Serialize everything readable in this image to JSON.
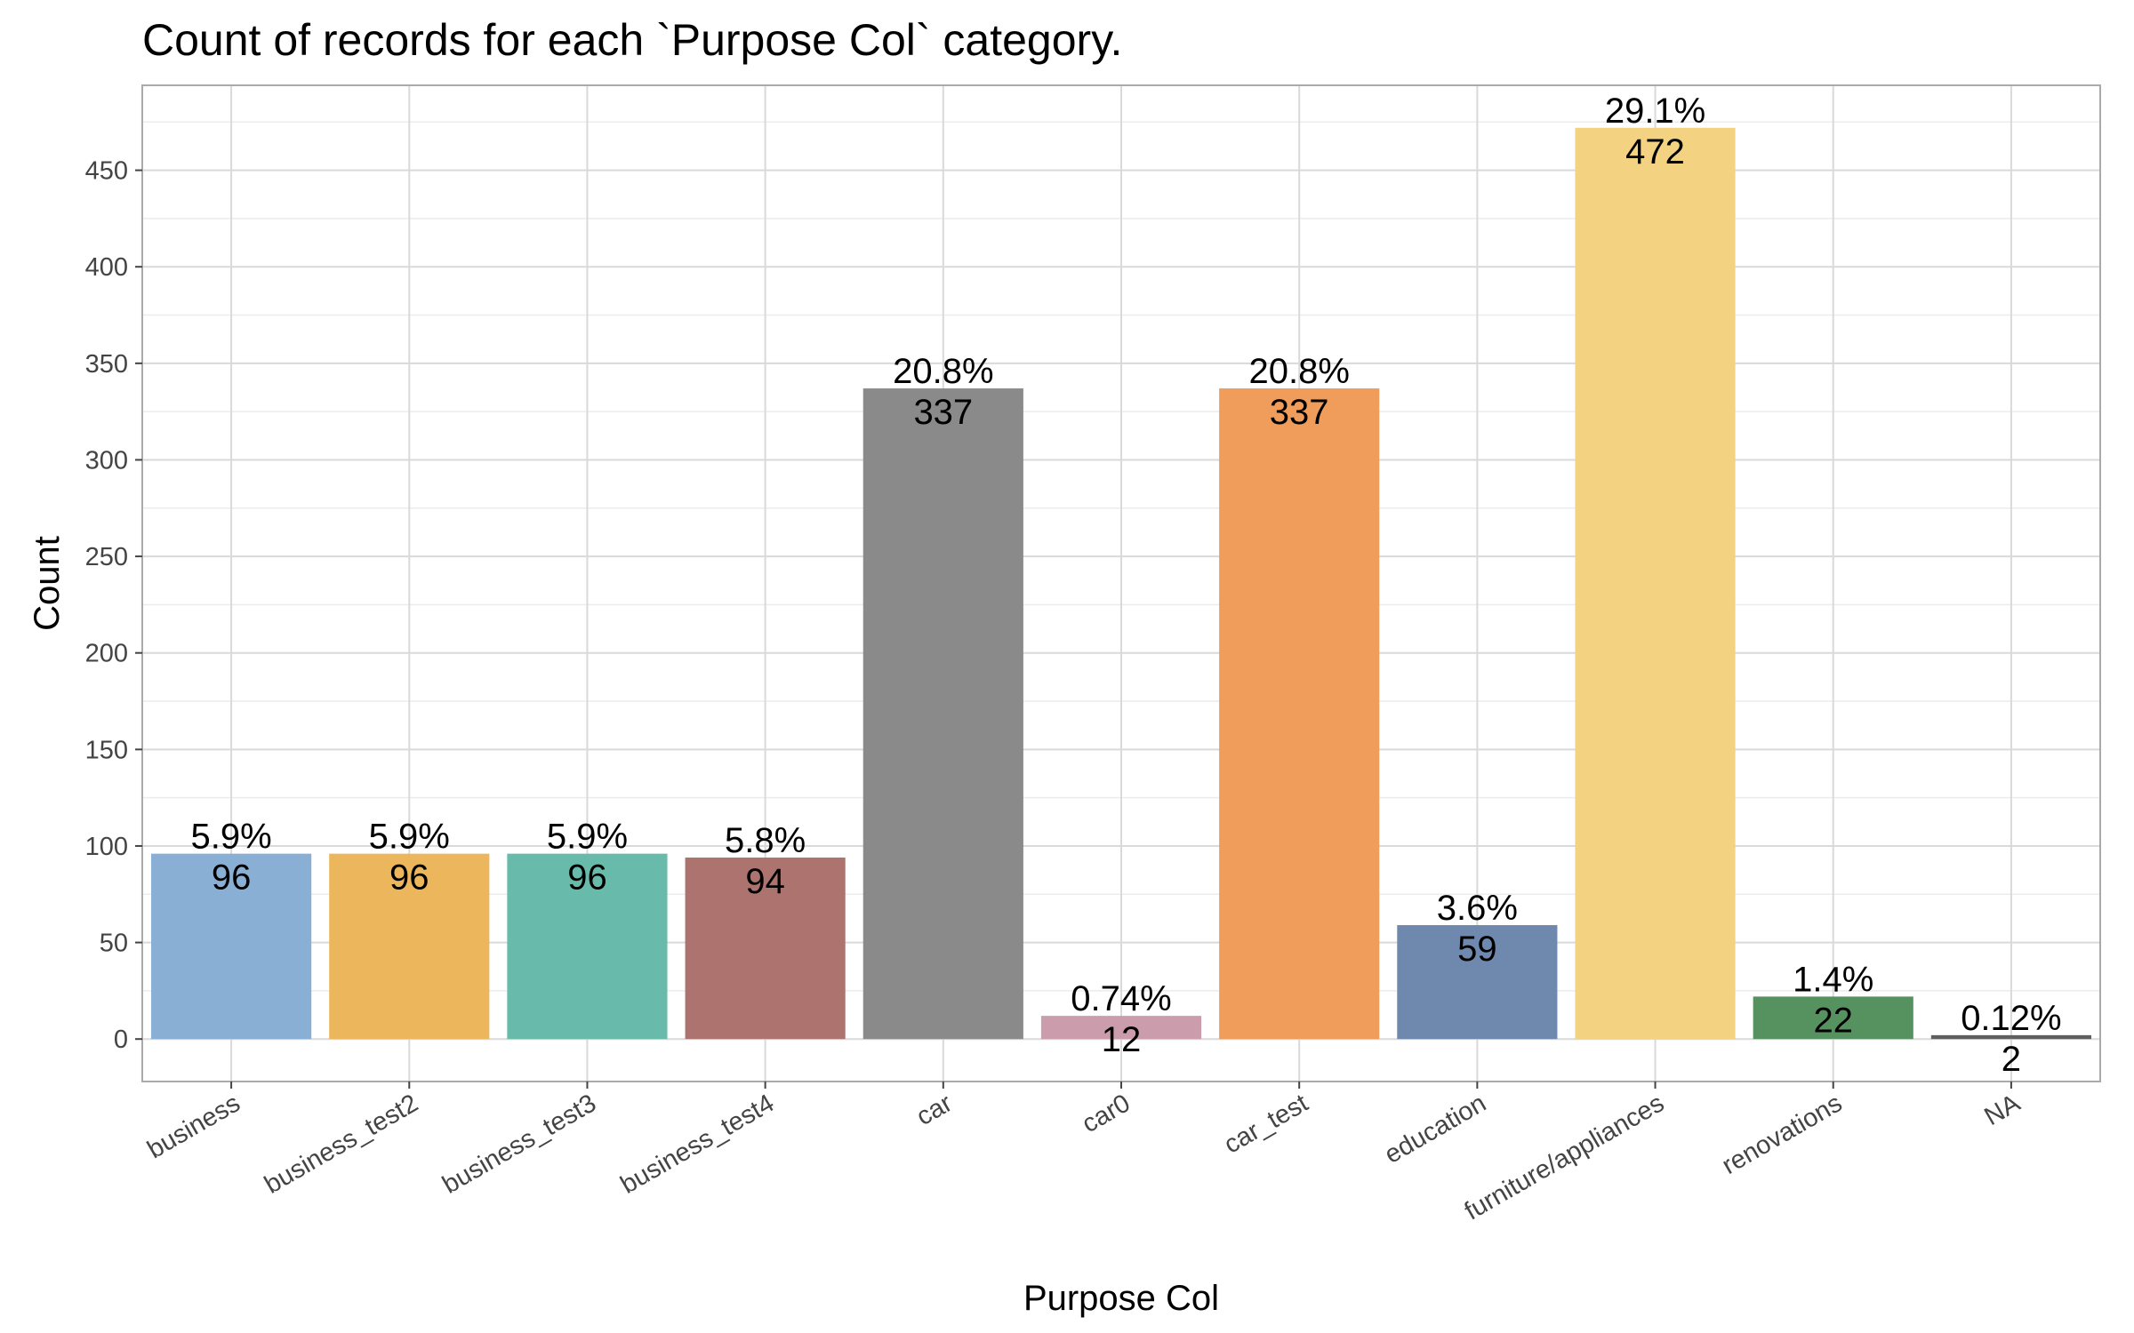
{
  "chart_data": {
    "type": "bar",
    "title": "Count of records for each `Purpose Col` category.",
    "xlabel": "Purpose Col",
    "ylabel": "Count",
    "categories": [
      "business",
      "business_test2",
      "business_test3",
      "business_test4",
      "car",
      "car0",
      "car_test",
      "education",
      "furniture/appliances",
      "renovations",
      "NA"
    ],
    "values": [
      96,
      96,
      96,
      94,
      337,
      12,
      337,
      59,
      472,
      22,
      2
    ],
    "percent_labels": [
      "5.9%",
      "5.9%",
      "5.9%",
      "5.8%",
      "20.8%",
      "0.74%",
      "20.8%",
      "3.6%",
      "29.1%",
      "1.4%",
      "0.12%"
    ],
    "count_labels": [
      "96",
      "96",
      "96",
      "94",
      "337",
      "12",
      "337",
      "59",
      "472",
      "22",
      "2"
    ],
    "colors": [
      "#8aafd4",
      "#ebb65c",
      "#68bbaa",
      "#ad736e",
      "#8a8a8a",
      "#cb9cab",
      "#f09c5a",
      "#6f89ae",
      "#f3d282",
      "#56925f",
      "#5f5f5f"
    ],
    "yticks": [
      0,
      50,
      100,
      150,
      200,
      250,
      300,
      350,
      400,
      450
    ],
    "ylim": [
      -22,
      494
    ],
    "grid": true,
    "legend": "none"
  }
}
